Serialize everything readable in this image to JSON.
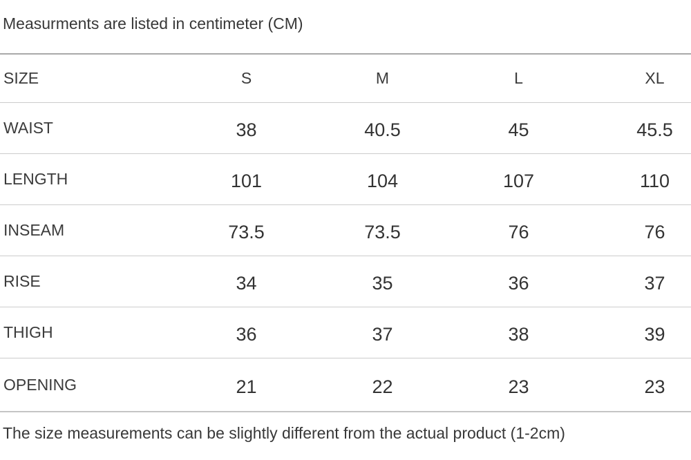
{
  "page": {
    "title": "Measurments are listed in centimeter (CM)",
    "footnote": "The size measurements can be slightly different from the actual product (1-2cm)"
  },
  "colors": {
    "text": "#3b3b3b",
    "table_border_top": "#a8a8a8",
    "table_border_inner": "#cccccc",
    "table_border_bottom": "#c5c5c5",
    "background": "#ffffff"
  },
  "table": {
    "unit": "CM",
    "columns": [
      "SIZE",
      "S",
      "M",
      "L",
      "XL"
    ],
    "rows": [
      {
        "label": "WAIST",
        "values": [
          "38",
          "40.5",
          "45",
          "45.5"
        ]
      },
      {
        "label": "LENGTH",
        "values": [
          "101",
          "104",
          "107",
          "110"
        ]
      },
      {
        "label": "INSEAM",
        "values": [
          "73.5",
          "73.5",
          "76",
          "76"
        ]
      },
      {
        "label": "RISE",
        "values": [
          "34",
          "35",
          "36",
          "37"
        ]
      },
      {
        "label": "THIGH",
        "values": [
          "36",
          "37",
          "38",
          "39"
        ]
      },
      {
        "label": "OPENING",
        "values": [
          "21",
          "22",
          "23",
          "23"
        ]
      }
    ]
  }
}
